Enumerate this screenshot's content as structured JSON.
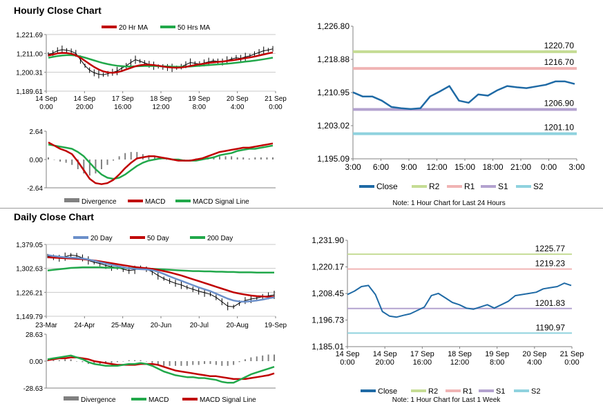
{
  "sections": {
    "hourly_title": "Hourly Close Chart",
    "daily_title": "Daily Close Chart"
  },
  "colors": {
    "close": "#1f6aa5",
    "ma20hr": "#c00000",
    "ma50hr": "#21a84a",
    "day20": "#6b8fc9",
    "day50": "#c00000",
    "day200": "#21a84a",
    "macd_hourly": "#c00000",
    "signal_hourly": "#21a84a",
    "macd_daily": "#21a84a",
    "signal_daily": "#c00000",
    "R2": "#c5dc94",
    "R1": "#f0b4b4",
    "S1": "#b3a2cf",
    "S2": "#8fd2de",
    "divergence": "#808080"
  },
  "chart_data": [
    {
      "id": "hourly_price",
      "type": "line",
      "yticks": [
        "1,221.69",
        "1,211.00",
        "1,200.31",
        "1,189.61"
      ],
      "ylim": [
        1189.61,
        1221.69
      ],
      "xticks": [
        [
          "14 Sep",
          "0:00"
        ],
        [
          "14 Sep",
          "20:00"
        ],
        [
          "17 Sep",
          "16:00"
        ],
        [
          "18 Sep",
          "12:00"
        ],
        [
          "19 Sep",
          "8:00"
        ],
        [
          "20 Sep",
          "4:00"
        ],
        [
          "21 Sep",
          "0:00"
        ]
      ],
      "legend": [
        "20 Hr MA",
        "50 Hrs MA"
      ],
      "series": [
        {
          "name": "Price",
          "values": [
            1210.5,
            1211.2,
            1212.5,
            1213.1,
            1212.8,
            1212.2,
            1211.0,
            1207.5,
            1204.0,
            1201.5,
            1200.0,
            1199.2,
            1198.9,
            1199.5,
            1200.3,
            1201.0,
            1202.6,
            1204.0,
            1205.8,
            1207.4,
            1206.6,
            1205.6,
            1204.8,
            1204.0,
            1203.6,
            1203.3,
            1203.0,
            1202.8,
            1202.9,
            1203.5,
            1204.6,
            1205.8,
            1205.4,
            1205.0,
            1205.6,
            1206.2,
            1206.8,
            1206.5,
            1206.1,
            1207.0,
            1207.8,
            1208.5,
            1208.2,
            1209.0,
            1209.6,
            1210.6,
            1211.5,
            1212.5,
            1212.9,
            1213.6
          ]
        },
        {
          "name": "20 Hr MA",
          "values": [
            1209.8,
            1210.4,
            1211.0,
            1211.3,
            1211.2,
            1210.8,
            1209.9,
            1208.5,
            1206.8,
            1205.0,
            1203.3,
            1201.9,
            1200.8,
            1200.2,
            1200.0,
            1200.3,
            1201.0,
            1201.9,
            1202.8,
            1203.7,
            1204.3,
            1204.6,
            1204.6,
            1204.4,
            1204.0,
            1203.6,
            1203.2,
            1203.0,
            1202.9,
            1203.0,
            1203.4,
            1203.9,
            1204.4,
            1204.8,
            1205.2,
            1205.6,
            1205.9,
            1206.2,
            1206.4,
            1206.7,
            1207.0,
            1207.4,
            1207.8,
            1208.3,
            1208.7,
            1209.2,
            1209.8,
            1210.4,
            1211.0,
            1211.5
          ]
        },
        {
          "name": "50 Hrs MA",
          "values": [
            1208.5,
            1209.0,
            1209.5,
            1209.8,
            1210.0,
            1210.0,
            1209.8,
            1209.3,
            1208.6,
            1207.8,
            1207.0,
            1206.2,
            1205.5,
            1204.9,
            1204.4,
            1204.0,
            1203.8,
            1203.6,
            1203.6,
            1203.7,
            1203.8,
            1203.9,
            1203.9,
            1203.9,
            1203.8,
            1203.7,
            1203.6,
            1203.5,
            1203.4,
            1203.4,
            1203.5,
            1203.6,
            1203.8,
            1204.0,
            1204.2,
            1204.4,
            1204.6,
            1204.8,
            1205.0,
            1205.2,
            1205.4,
            1205.7,
            1206.0,
            1206.3,
            1206.6,
            1206.9,
            1207.3,
            1207.7,
            1208.1,
            1208.6
          ]
        }
      ]
    },
    {
      "id": "hourly_macd",
      "type": "line",
      "yticks": [
        "2.64",
        "0.00",
        "-2.64"
      ],
      "ylim": [
        -2.64,
        2.64
      ],
      "legend": [
        "Divergence",
        "MACD",
        "MACD Signal Line"
      ],
      "series": [
        {
          "name": "MACD",
          "values": [
            1.6,
            1.3,
            1.0,
            0.8,
            0.5,
            -0.2,
            -1.0,
            -1.8,
            -2.2,
            -2.3,
            -2.2,
            -1.9,
            -1.4,
            -0.8,
            -0.3,
            0.1,
            0.2,
            0.3,
            0.3,
            0.2,
            0.1,
            0.0,
            -0.1,
            -0.1,
            -0.1,
            0.0,
            0.1,
            0.3,
            0.5,
            0.7,
            0.8,
            0.9,
            1.0,
            1.1,
            1.1,
            1.2,
            1.3,
            1.4,
            1.5
          ]
        },
        {
          "name": "MACD Signal Line",
          "values": [
            1.4,
            1.3,
            1.2,
            1.1,
            1.0,
            0.7,
            0.3,
            -0.3,
            -0.9,
            -1.4,
            -1.7,
            -1.8,
            -1.7,
            -1.4,
            -1.0,
            -0.6,
            -0.3,
            -0.1,
            0.0,
            0.1,
            0.1,
            0.0,
            0.0,
            -0.1,
            -0.1,
            -0.1,
            0.0,
            0.1,
            0.2,
            0.4,
            0.5,
            0.6,
            0.8,
            0.9,
            1.0,
            1.0,
            1.1,
            1.2,
            1.3
          ]
        },
        {
          "name": "Divergence",
          "values": [
            0.2,
            0.0,
            -0.2,
            -0.3,
            -0.5,
            -0.9,
            -1.3,
            -1.5,
            -1.3,
            -0.9,
            -0.5,
            -0.1,
            0.3,
            0.6,
            0.7,
            0.7,
            0.5,
            0.4,
            0.3,
            0.1,
            0.0,
            0.0,
            -0.1,
            0.0,
            0.0,
            0.1,
            0.1,
            0.2,
            0.3,
            0.3,
            0.3,
            0.3,
            0.2,
            0.2,
            0.1,
            0.2,
            0.2,
            0.2,
            0.2
          ]
        }
      ]
    },
    {
      "id": "hourly_levels",
      "type": "line",
      "yticks": [
        "1,226.80",
        "1,218.88",
        "1,210.95",
        "1,203.02",
        "1,195.09"
      ],
      "ylim": [
        1195.09,
        1226.8
      ],
      "xticks": [
        "3:00",
        "6:00",
        "9:00",
        "12:00",
        "15:00",
        "18:00",
        "21:00",
        "0:00",
        "3:00"
      ],
      "legend": [
        "Close",
        "R2",
        "R1",
        "S1",
        "S2"
      ],
      "levels": [
        {
          "name": "R2",
          "value": 1220.7,
          "label": "1220.70"
        },
        {
          "name": "R1",
          "value": 1216.7,
          "label": "1216.70"
        },
        {
          "name": "S1",
          "value": 1206.9,
          "label": "1206.90"
        },
        {
          "name": "S2",
          "value": 1201.1,
          "label": "1201.10"
        }
      ],
      "series": [
        {
          "name": "Close",
          "values": [
            1211.0,
            1210.0,
            1210.0,
            1209.0,
            1207.5,
            1207.2,
            1207.0,
            1207.2,
            1210.0,
            1211.2,
            1212.5,
            1209.0,
            1208.5,
            1210.5,
            1210.2,
            1211.5,
            1212.5,
            1212.2,
            1212.0,
            1212.4,
            1212.8,
            1213.6,
            1213.6,
            1213.0
          ]
        }
      ],
      "note": "Note: 1 Hour Chart for Last 24 Hours"
    },
    {
      "id": "daily_price",
      "type": "line",
      "yticks": [
        "1,379.05",
        "1,302.63",
        "1,226.21",
        "1,149.79"
      ],
      "ylim": [
        1149.79,
        1379.05
      ],
      "xticks": [
        "23-Mar",
        "24-Apr",
        "25-May",
        "20-Jun",
        "20-Jul",
        "20-Aug",
        "19-Sep"
      ],
      "legend": [
        "20 Day",
        "50 Day",
        "200 Day"
      ],
      "series": [
        {
          "name": "Price",
          "values": [
            1342,
            1338,
            1335,
            1340,
            1345,
            1343,
            1336,
            1328,
            1322,
            1318,
            1312,
            1308,
            1305,
            1300,
            1296,
            1298,
            1305,
            1300,
            1292,
            1280,
            1270,
            1262,
            1255,
            1250,
            1242,
            1236,
            1230,
            1225,
            1220,
            1210,
            1196,
            1182,
            1180,
            1192,
            1200,
            1205,
            1208,
            1212,
            1215,
            1218
          ]
        },
        {
          "name": "20 Day",
          "values": [
            1345,
            1342,
            1340,
            1338,
            1337,
            1336,
            1334,
            1331,
            1327,
            1322,
            1318,
            1314,
            1310,
            1306,
            1303,
            1301,
            1300,
            1299,
            1297,
            1292,
            1285,
            1277,
            1270,
            1263,
            1256,
            1249,
            1242,
            1236,
            1230,
            1222,
            1214,
            1206,
            1200,
            1197,
            1196,
            1198,
            1200,
            1203,
            1207,
            1210
          ]
        },
        {
          "name": "50 Day",
          "values": [
            1338,
            1337,
            1336,
            1335,
            1334,
            1333,
            1332,
            1330,
            1328,
            1325,
            1322,
            1319,
            1316,
            1313,
            1310,
            1307,
            1305,
            1303,
            1301,
            1298,
            1294,
            1290,
            1285,
            1280,
            1274,
            1268,
            1262,
            1256,
            1250,
            1244,
            1238,
            1232,
            1226,
            1222,
            1219,
            1216,
            1214,
            1213,
            1212,
            1212
          ]
        },
        {
          "name": "200 Day",
          "values": [
            1296,
            1298,
            1300,
            1302,
            1304,
            1305,
            1306,
            1306,
            1306,
            1306,
            1305,
            1305,
            1304,
            1304,
            1303,
            1303,
            1302,
            1302,
            1301,
            1300,
            1299,
            1298,
            1297,
            1296,
            1295,
            1294,
            1294,
            1293,
            1293,
            1292,
            1292,
            1291,
            1291,
            1290,
            1290,
            1290,
            1289,
            1289,
            1289,
            1289
          ]
        }
      ]
    },
    {
      "id": "daily_macd",
      "type": "line",
      "yticks": [
        "28.63",
        "0.00",
        "-28.63"
      ],
      "ylim": [
        -28.63,
        28.63
      ],
      "legend": [
        "Divergence",
        "MACD",
        "MACD Signal Line"
      ],
      "series": [
        {
          "name": "MACD",
          "values": [
            2,
            3,
            4,
            5,
            6,
            4,
            2,
            -1,
            -3,
            -4,
            -5,
            -5,
            -5,
            -4,
            -3,
            -3,
            -2,
            -3,
            -5,
            -8,
            -11,
            -13,
            -15,
            -16,
            -17,
            -17,
            -18,
            -18,
            -19,
            -20,
            -22,
            -23,
            -23,
            -20,
            -17,
            -14,
            -12,
            -10,
            -8,
            -6
          ]
        },
        {
          "name": "MACD Signal Line",
          "values": [
            1,
            2,
            3,
            3,
            4,
            4,
            3,
            2,
            0,
            -1,
            -2,
            -3,
            -4,
            -4,
            -4,
            -4,
            -3,
            -3,
            -3,
            -4,
            -6,
            -8,
            -10,
            -11,
            -12,
            -13,
            -14,
            -15,
            -16,
            -16,
            -17,
            -18,
            -19,
            -19,
            -19,
            -18,
            -17,
            -16,
            -15,
            -13
          ]
        },
        {
          "name": "Divergence",
          "values": [
            1,
            1,
            1,
            2,
            2,
            0,
            -1,
            -3,
            -3,
            -3,
            -3,
            -2,
            -1,
            0,
            1,
            1,
            1,
            0,
            -2,
            -4,
            -5,
            -5,
            -5,
            -5,
            -5,
            -4,
            -4,
            -3,
            -3,
            -4,
            -5,
            -5,
            -4,
            -1,
            2,
            4,
            5,
            6,
            7,
            7
          ]
        }
      ]
    },
    {
      "id": "daily_levels",
      "type": "line",
      "yticks": [
        "1,231.90",
        "1,220.17",
        "1,208.45",
        "1,196.73",
        "1,185.01"
      ],
      "ylim": [
        1185.01,
        1231.9
      ],
      "xticks": [
        [
          "14 Sep",
          "0:00"
        ],
        [
          "14 Sep",
          "20:00"
        ],
        [
          "17 Sep",
          "16:00"
        ],
        [
          "18 Sep",
          "12:00"
        ],
        [
          "19 Sep",
          "8:00"
        ],
        [
          "20 Sep",
          "4:00"
        ],
        [
          "21 Sep",
          "0:00"
        ]
      ],
      "legend": [
        "Close",
        "R2",
        "R1",
        "S1",
        "S2"
      ],
      "levels": [
        {
          "name": "R2",
          "value": 1225.77,
          "label": "1225.77"
        },
        {
          "name": "R1",
          "value": 1219.23,
          "label": "1219.23"
        },
        {
          "name": "S1",
          "value": 1201.83,
          "label": "1201.83"
        },
        {
          "name": "S2",
          "value": 1190.97,
          "label": "1190.97"
        }
      ],
      "series": [
        {
          "name": "Close",
          "values": [
            1208.0,
            1209.5,
            1211.5,
            1212.0,
            1208.0,
            1200.5,
            1198.5,
            1198.0,
            1198.8,
            1199.5,
            1201.0,
            1202.5,
            1207.5,
            1208.5,
            1206.5,
            1204.5,
            1203.5,
            1202.0,
            1201.5,
            1202.5,
            1203.5,
            1202.0,
            1203.5,
            1205.0,
            1207.5,
            1208.0,
            1208.5,
            1209.0,
            1210.5,
            1211.0,
            1211.5,
            1213.0,
            1212.0
          ]
        }
      ],
      "note": "Note: 1 Hour Chart for Last 1 Week"
    }
  ]
}
